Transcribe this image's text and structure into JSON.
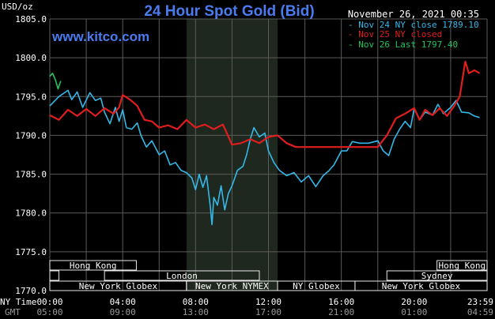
{
  "header": {
    "title": "24 Hour Spot Gold (Bid)",
    "unit": "USD/oz",
    "datetime": "November 26, 2021 00:35",
    "watermark": "www.kitco.com"
  },
  "legend": [
    {
      "text": "Nov 24 NY close 1789.10",
      "color": "#33b8e8"
    },
    {
      "text": "Nov 25 NY closed",
      "color": "#e11d1d"
    },
    {
      "text": "Nov 26 Last 1797.40",
      "color": "#22c55e"
    }
  ],
  "markets": {
    "row1": [
      {
        "label": "Hong Kong",
        "start": 0,
        "end": 4.75
      },
      {
        "label": "Hong Kong",
        "start": 21.25,
        "end": 24
      }
    ],
    "row2": [
      {
        "label": "London",
        "start": 0,
        "end": 0.5
      },
      {
        "label": "London",
        "start": 3,
        "end": 11.5
      },
      {
        "label": "Sydney",
        "start": 18.5,
        "end": 24
      }
    ],
    "row3": [
      {
        "label": "New York Globex",
        "start": 0,
        "end": 7.5
      },
      {
        "label": "New York NYMEX",
        "start": 7.5,
        "end": 12.5
      },
      {
        "label": "NY Globex",
        "start": 12.5,
        "end": 16.75
      },
      {
        "label": "New York Globex",
        "start": 16.75,
        "end": 24
      }
    ]
  },
  "colors": {
    "background": "#000000",
    "grid": "#5a5a5a",
    "axis_text": "#ffffff",
    "title": "#4a7cf0",
    "watermark": "#4a7cf0",
    "shade": "#1f281f",
    "market_box": "#e8e8e8",
    "market_text": "#ffffff"
  },
  "chart_data": {
    "type": "line",
    "title": "24 Hour Spot Gold (Bid)",
    "ylabel": "USD/oz",
    "ylim": [
      1770,
      1805
    ],
    "xlim": [
      0,
      24
    ],
    "yticks": [
      {
        "value": 1805,
        "label": "1805.0"
      },
      {
        "value": 1800,
        "label": "1800.0"
      },
      {
        "value": 1795,
        "label": "1795.0"
      },
      {
        "value": 1790,
        "label": "1790.0"
      },
      {
        "value": 1785,
        "label": "1785.0"
      },
      {
        "value": 1780,
        "label": "1780.0"
      },
      {
        "value": 1775,
        "label": "1775.0"
      },
      {
        "value": 1770,
        "label": "1770.0"
      }
    ],
    "xticks_ny": [
      "00:00",
      "04:00",
      "08:00",
      "12:00",
      "16:00",
      "20:00",
      "23:59"
    ],
    "xticks_gmt": [
      "05:00",
      "09:00",
      "13:00",
      "17:00",
      "21:00",
      "01:00",
      "04:59"
    ],
    "xaxis_ny_label": "NY Time",
    "xaxis_gmt_label": "GMT",
    "shaded_range": [
      7.5,
      12.5
    ],
    "grid": true,
    "series": [
      {
        "name": "Nov 24 NY close 1789.10",
        "color": "#33b8e8",
        "x": [
          0,
          0.5,
          1,
          1.2,
          1.5,
          1.8,
          2.2,
          2.5,
          2.8,
          3,
          3.3,
          3.6,
          3.8,
          4,
          4.2,
          4.5,
          4.8,
          5,
          5.3,
          5.6,
          6,
          6.3,
          6.6,
          6.9,
          7.2,
          7.5,
          7.8,
          8,
          8.2,
          8.4,
          8.6,
          8.8,
          8.9,
          9,
          9.2,
          9.4,
          9.6,
          9.8,
          10,
          10.3,
          10.6,
          10.8,
          11,
          11.2,
          11.5,
          11.8,
          12,
          12.3,
          12.6,
          13,
          13.4,
          13.8,
          14.2,
          14.6,
          15,
          15.3,
          15.6,
          16,
          16.3,
          16.6,
          17,
          17.5,
          18,
          18.3,
          18.6,
          18.9,
          19.2,
          19.5,
          19.8,
          20,
          20.3,
          20.6,
          21,
          21.3,
          21.6,
          22,
          22.3,
          22.6,
          23,
          23.3,
          23.59
        ],
        "y": [
          1793.8,
          1795.0,
          1795.8,
          1794.6,
          1795.6,
          1793.6,
          1795.5,
          1794.5,
          1794.8,
          1793.0,
          1791.5,
          1793.6,
          1791.8,
          1793.3,
          1791.0,
          1790.8,
          1791.6,
          1790.0,
          1788.5,
          1789.3,
          1787.5,
          1788.0,
          1786.2,
          1786.5,
          1785.5,
          1785.2,
          1784.5,
          1783.0,
          1785.0,
          1783.3,
          1784.8,
          1781.0,
          1778.5,
          1782.0,
          1781.0,
          1783.5,
          1780.4,
          1782.5,
          1783.5,
          1785.5,
          1786.0,
          1787.5,
          1789.5,
          1791.0,
          1789.8,
          1790.3,
          1788.0,
          1786.5,
          1785.5,
          1784.8,
          1785.2,
          1784.0,
          1784.8,
          1783.4,
          1784.8,
          1785.4,
          1786.2,
          1788.0,
          1788.0,
          1789.2,
          1789.0,
          1789.0,
          1789.3,
          1788.0,
          1787.4,
          1789.5,
          1790.8,
          1791.8,
          1791.0,
          1793.5,
          1792.0,
          1793.0,
          1792.6,
          1794.0,
          1792.8,
          1793.6,
          1794.5,
          1793.0,
          1792.9,
          1792.5,
          1792.3
        ]
      },
      {
        "name": "Nov 25 NY closed",
        "color": "#e11d1d",
        "x": [
          0,
          0.5,
          1,
          1.5,
          2,
          2.5,
          3,
          3.5,
          3.8,
          4,
          4.4,
          4.8,
          5.2,
          5.6,
          6,
          6.5,
          7,
          7.5,
          8,
          8.5,
          9,
          9.5,
          10,
          10.5,
          11,
          11.5,
          12,
          12.5,
          13,
          13.5,
          14,
          15,
          16,
          17,
          18,
          18.5,
          19,
          19.5,
          20,
          20.3,
          20.6,
          21,
          21.4,
          21.8,
          22.2,
          22.5,
          22.8,
          23,
          23.3,
          23.59
        ],
        "y": [
          1792.6,
          1792.0,
          1793.3,
          1792.5,
          1793.4,
          1792.5,
          1793.5,
          1792.8,
          1793.6,
          1795.2,
          1794.6,
          1793.8,
          1792.0,
          1791.8,
          1791.0,
          1791.3,
          1790.8,
          1792.0,
          1791.0,
          1791.4,
          1790.8,
          1791.4,
          1788.8,
          1789.0,
          1789.5,
          1789.0,
          1789.8,
          1790.0,
          1789.0,
          1788.5,
          1788.5,
          1788.5,
          1788.5,
          1788.5,
          1788.5,
          1790.0,
          1792.2,
          1792.8,
          1793.5,
          1792.0,
          1793.3,
          1792.6,
          1793.5,
          1792.5,
          1793.8,
          1795.0,
          1799.5,
          1798.0,
          1798.4,
          1798.0
        ]
      },
      {
        "name": "Nov 26 Last 1797.40",
        "color": "#22c55e",
        "x": [
          0,
          0.15,
          0.3,
          0.45,
          0.6
        ],
        "y": [
          1797.6,
          1798.0,
          1797.2,
          1796.0,
          1797.0
        ]
      }
    ]
  }
}
